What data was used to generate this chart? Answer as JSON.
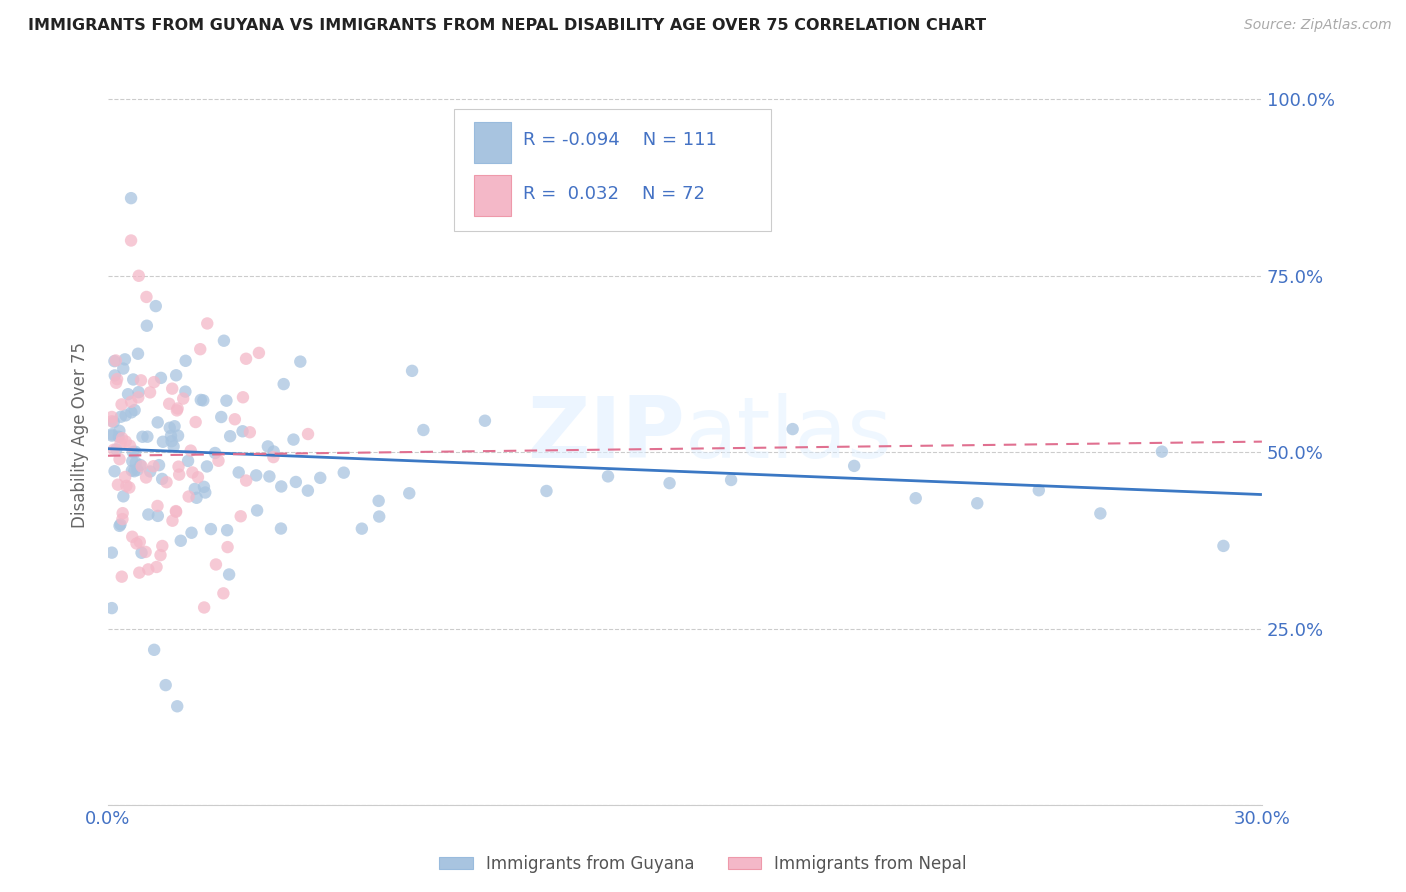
{
  "title": "IMMIGRANTS FROM GUYANA VS IMMIGRANTS FROM NEPAL DISABILITY AGE OVER 75 CORRELATION CHART",
  "source": "Source: ZipAtlas.com",
  "ylabel": "Disability Age Over 75",
  "xlim": [
    0.0,
    0.3
  ],
  "ylim": [
    0.0,
    1.05
  ],
  "ytick_vals": [
    0.0,
    0.25,
    0.5,
    0.75,
    1.0
  ],
  "ytick_labels": [
    "",
    "25.0%",
    "50.0%",
    "75.0%",
    "100.0%"
  ],
  "xtick_vals": [
    0.0,
    0.05,
    0.1,
    0.15,
    0.2,
    0.25,
    0.3
  ],
  "xtick_labels": [
    "0.0%",
    "",
    "",
    "",
    "",
    "",
    "30.0%"
  ],
  "watermark": "ZIPatlas",
  "guyana_color": "#a8c4e0",
  "nepal_color": "#f4b8c8",
  "guyana_line_color": "#3b78c4",
  "nepal_line_color": "#e07090",
  "legend_label_guyana": "Immigrants from Guyana",
  "legend_label_nepal": "Immigrants from Nepal",
  "R_guyana": -0.094,
  "N_guyana": 111,
  "R_nepal": 0.032,
  "N_nepal": 72,
  "background_color": "#ffffff",
  "grid_color": "#cccccc",
  "title_color": "#222222",
  "source_color": "#aaaaaa",
  "ylabel_color": "#666666",
  "tick_color": "#4472c4"
}
